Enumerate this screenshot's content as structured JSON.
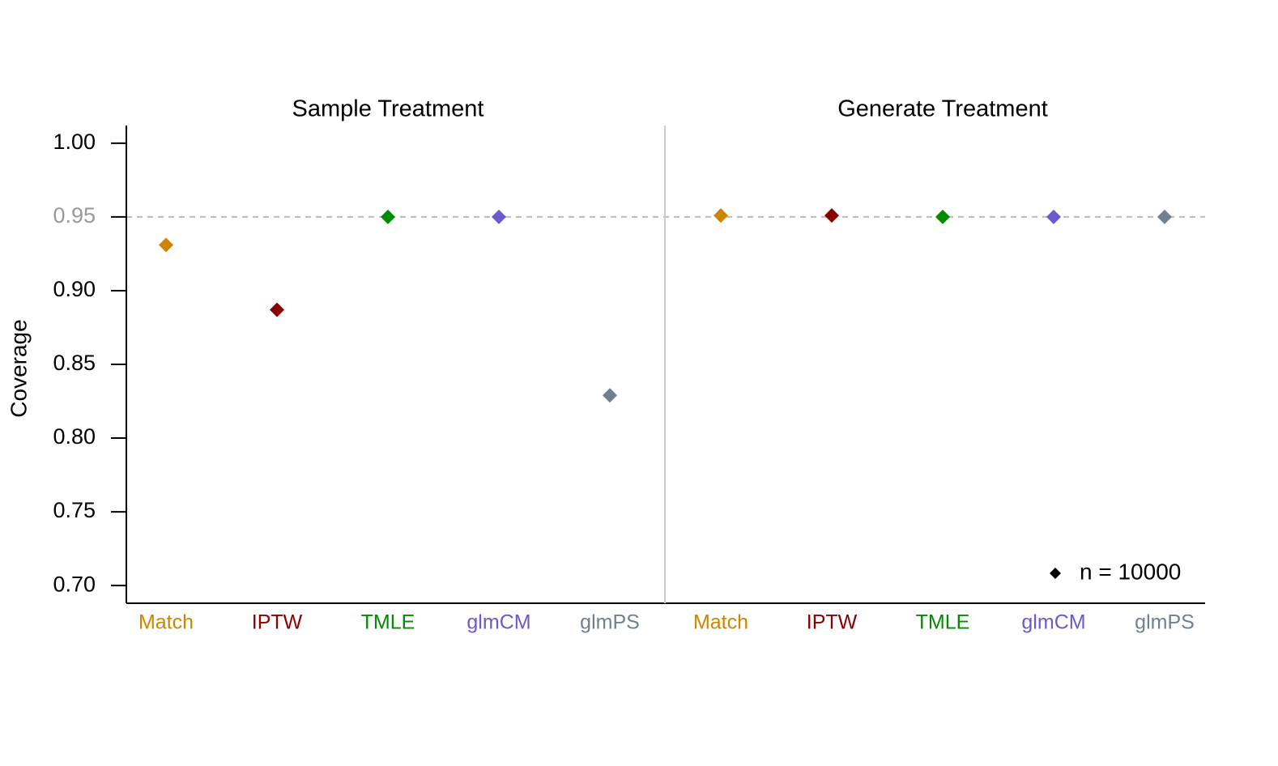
{
  "chart_data": {
    "type": "scatter",
    "ylabel": "Coverage",
    "categories": [
      "Match",
      "IPTW",
      "TMLE",
      "glmCM",
      "glmPS"
    ],
    "colors": [
      "#cd8500",
      "#8b0000",
      "#008b00",
      "#6a5acd",
      "#708090"
    ],
    "panels": [
      {
        "title": "Sample Treatment",
        "values": [
          0.931,
          0.887,
          0.95,
          0.95,
          0.829
        ]
      },
      {
        "title": "Generate Treatment",
        "values": [
          0.951,
          0.951,
          0.95,
          0.95,
          0.95
        ]
      }
    ],
    "ylim": [
      0.688,
      1.012
    ],
    "yticks": [
      {
        "value": 0.7,
        "label": "0.70"
      },
      0.75,
      {
        "value": 0.8,
        "label": "0.80"
      },
      0.85,
      {
        "value": 0.9,
        "label": "0.90"
      },
      0.95,
      {
        "value": 1,
        "label": "1.00"
      }
    ],
    "hline": 0.95,
    "legend": {
      "label": "n = 10000",
      "position": "bottom-right",
      "color": "#000000"
    }
  }
}
